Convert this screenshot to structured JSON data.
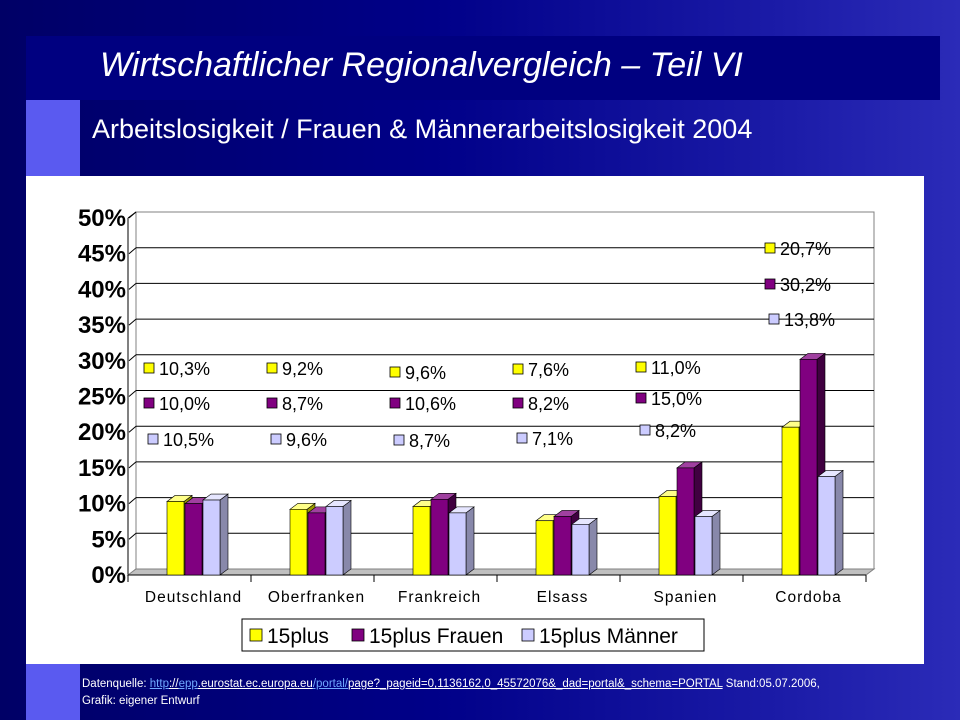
{
  "slide": {
    "title": "Wirtschaftlicher Regionalvergleich – Teil VI",
    "subtitle": "Arbeitslosigkeit / Frauen & Männerarbeitslosigkeit   2004"
  },
  "colors": {
    "background": "#000080",
    "accent": "#5a5af0",
    "series_15plus": "#ffff00",
    "series_frauen": "#800080",
    "series_maenner": "#ccccff"
  },
  "chart_data": {
    "type": "bar",
    "categories": [
      "Deutschland",
      "Oberfranken",
      "Frankreich",
      "Elsass",
      "Spanien",
      "Cordoba"
    ],
    "series": [
      {
        "name": "15plus",
        "values": [
          10.3,
          9.2,
          9.6,
          7.6,
          11.0,
          20.7
        ],
        "labels": [
          "10,3%",
          "9,2%",
          "9,6%",
          "7,6%",
          "11,0%",
          "20,7%"
        ]
      },
      {
        "name": "15plus Frauen",
        "values": [
          10.0,
          8.7,
          10.6,
          8.2,
          15.0,
          30.2
        ],
        "labels": [
          "10,0%",
          "8,7%",
          "10,6%",
          "8,2%",
          "15,0%",
          "30,2%"
        ]
      },
      {
        "name": "15plus Männer",
        "values": [
          10.5,
          9.6,
          8.7,
          7.1,
          8.2,
          13.8
        ],
        "labels": [
          "10,5%",
          "9,6%",
          "8,7%",
          "7,1%",
          "8,2%",
          "13,8%"
        ]
      }
    ],
    "yticks": [
      "0%",
      "5%",
      "10%",
      "15%",
      "20%",
      "25%",
      "30%",
      "35%",
      "40%",
      "45%",
      "50%"
    ],
    "ylim": [
      0,
      50
    ],
    "grid": true,
    "legend": "bottom"
  },
  "source": {
    "prefix": "Datenquelle: ",
    "link_parts": [
      "http",
      "://",
      "epp",
      ".eurostat.ec.europa.eu",
      "/portal/",
      "page?_pageid=0,1136162,0_45572076&_dad=portal&_schema=PORTAL"
    ],
    "suffix": "  Stand:05.07.2006,",
    "line2": "Grafik: eigener Entwurf"
  }
}
